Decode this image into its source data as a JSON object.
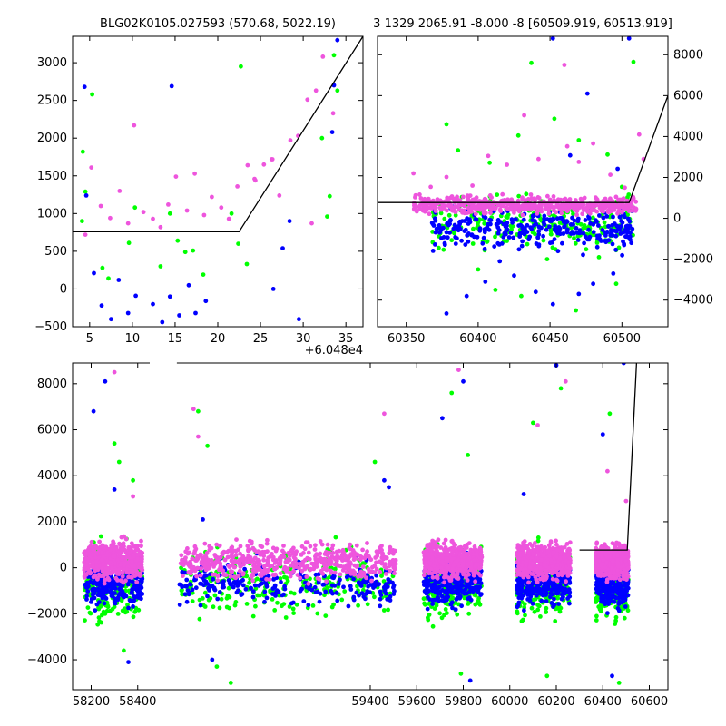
{
  "figure": {
    "title_left": "BLG02K0105.027593 (570.68, 5022.19)",
    "title_right": "3 1329 2065.91 -8.000 -8 [60509.919, 60513.919]"
  },
  "colors": {
    "green": "#00ff00",
    "blue": "#0000ff",
    "magenta": "#ee55dd",
    "line": "#000000"
  },
  "chart_data": [
    {
      "id": "zoom-left",
      "type": "scatter",
      "offset_label": "+6.048e4",
      "xlim": [
        3,
        37
      ],
      "ylim": [
        -500,
        3350
      ],
      "xticks": [
        5,
        10,
        15,
        20,
        25,
        30,
        35
      ],
      "xtick_labels": [
        "5",
        "10",
        "15",
        "20",
        "25",
        "30",
        "35"
      ],
      "yticks": [
        -500,
        0,
        500,
        1000,
        1500,
        2000,
        2500,
        3000
      ],
      "ytick_labels": [
        "−500",
        "0",
        "500",
        "1000",
        "1500",
        "2000",
        "2500",
        "3000"
      ],
      "model_line": [
        [
          3,
          760
        ],
        [
          22.5,
          760
        ],
        [
          37,
          3350
        ]
      ],
      "points": {
        "green": [
          [
            4.2,
            1820
          ],
          [
            4.5,
            1290
          ],
          [
            5.3,
            2580
          ],
          [
            4.1,
            900
          ],
          [
            6.5,
            280
          ],
          [
            7.2,
            140
          ],
          [
            9.6,
            610
          ],
          [
            10.3,
            1080
          ],
          [
            13.3,
            300
          ],
          [
            14.4,
            1000
          ],
          [
            15.3,
            640
          ],
          [
            16.2,
            490
          ],
          [
            17.1,
            510
          ],
          [
            18.3,
            190
          ],
          [
            21.6,
            1000
          ],
          [
            22.4,
            600
          ],
          [
            22.7,
            2950
          ],
          [
            23.4,
            330
          ],
          [
            32.2,
            2000
          ],
          [
            33.1,
            1230
          ],
          [
            33.6,
            3100
          ],
          [
            34.0,
            2630
          ],
          [
            32.8,
            960
          ]
        ],
        "blue": [
          [
            4.4,
            2680
          ],
          [
            4.6,
            1240
          ],
          [
            5.5,
            210
          ],
          [
            6.4,
            -220
          ],
          [
            7.5,
            -400
          ],
          [
            8.4,
            120
          ],
          [
            9.5,
            -320
          ],
          [
            10.4,
            -90
          ],
          [
            12.4,
            -200
          ],
          [
            13.5,
            -440
          ],
          [
            14.6,
            2690
          ],
          [
            14.4,
            -100
          ],
          [
            15.5,
            -350
          ],
          [
            16.6,
            50
          ],
          [
            17.4,
            -320
          ],
          [
            18.6,
            -160
          ],
          [
            26.5,
            0
          ],
          [
            27.6,
            540
          ],
          [
            28.4,
            900
          ],
          [
            29.5,
            -400
          ],
          [
            33.4,
            2080
          ],
          [
            33.6,
            2700
          ],
          [
            34.0,
            3300
          ]
        ],
        "magenta": [
          [
            4.5,
            720
          ],
          [
            5.2,
            1610
          ],
          [
            6.3,
            1100
          ],
          [
            7.4,
            940
          ],
          [
            8.5,
            1300
          ],
          [
            9.5,
            870
          ],
          [
            10.2,
            2170
          ],
          [
            11.3,
            1020
          ],
          [
            12.4,
            930
          ],
          [
            13.3,
            820
          ],
          [
            14.2,
            1120
          ],
          [
            15.1,
            1490
          ],
          [
            16.4,
            1040
          ],
          [
            17.3,
            1530
          ],
          [
            18.4,
            980
          ],
          [
            19.3,
            1220
          ],
          [
            20.4,
            1080
          ],
          [
            21.3,
            930
          ],
          [
            22.3,
            1360
          ],
          [
            23.5,
            1640
          ],
          [
            24.3,
            1460
          ],
          [
            25.4,
            1650
          ],
          [
            26.3,
            1720
          ],
          [
            27.2,
            1240
          ],
          [
            28.5,
            1970
          ],
          [
            29.4,
            2030
          ],
          [
            30.5,
            2510
          ],
          [
            31.5,
            2630
          ],
          [
            32.3,
            3080
          ],
          [
            33.5,
            2330
          ],
          [
            31.0,
            870
          ],
          [
            26.4,
            1720
          ],
          [
            24.4,
            1440
          ]
        ]
      }
    },
    {
      "id": "zoom-right",
      "type": "scatter",
      "xlim": [
        60330,
        60532
      ],
      "ylim": [
        -5300,
        8900
      ],
      "xticks": [
        60350,
        60400,
        60450,
        60500
      ],
      "xtick_labels": [
        "60350",
        "60400",
        "60450",
        "60500"
      ],
      "yticks": [
        -4000,
        -2000,
        0,
        2000,
        4000,
        6000,
        8000
      ],
      "ytick_labels": [
        "−4000",
        "−2000",
        "0",
        "2000",
        "4000",
        "6000",
        "8000"
      ],
      "model_line": [
        [
          60330,
          770
        ],
        [
          60505,
          770
        ],
        [
          60532,
          6000
        ]
      ],
      "points": {
        "green": [
          [
            60378,
            4600
          ],
          [
            60386,
            3320
          ],
          [
            60408,
            2720
          ],
          [
            60428,
            4050
          ],
          [
            60437,
            7600
          ],
          [
            60453,
            4870
          ],
          [
            60470,
            3820
          ],
          [
            60490,
            3120
          ],
          [
            60500,
            1540
          ],
          [
            60508,
            7650
          ],
          [
            60400,
            -2500
          ],
          [
            60412,
            -3500
          ],
          [
            60430,
            -3800
          ],
          [
            60448,
            -2000
          ],
          [
            60468,
            -4500
          ],
          [
            60484,
            -1900
          ],
          [
            60496,
            -3200
          ]
        ],
        "blue": [
          [
            60378,
            -4650
          ],
          [
            60392,
            -3800
          ],
          [
            60405,
            -3100
          ],
          [
            60415,
            -2100
          ],
          [
            60425,
            -2800
          ],
          [
            60440,
            -3600
          ],
          [
            60452,
            -4200
          ],
          [
            60470,
            -3700
          ],
          [
            60480,
            -3200
          ],
          [
            60494,
            -2700
          ],
          [
            60452,
            8800
          ],
          [
            60464,
            3080
          ],
          [
            60476,
            6100
          ],
          [
            60497,
            2420
          ],
          [
            60505,
            8800
          ]
        ],
        "magenta": [
          [
            60355,
            2200
          ],
          [
            60367,
            1540
          ],
          [
            60378,
            2020
          ],
          [
            60396,
            1600
          ],
          [
            60407,
            3050
          ],
          [
            60420,
            2620
          ],
          [
            60432,
            5040
          ],
          [
            60442,
            2900
          ],
          [
            60460,
            7500
          ],
          [
            60462,
            3520
          ],
          [
            60470,
            2760
          ],
          [
            60480,
            3660
          ],
          [
            60492,
            2130
          ],
          [
            60502,
            1500
          ],
          [
            60512,
            4100
          ],
          [
            60515,
            2900
          ]
        ]
      }
    },
    {
      "id": "full-season",
      "type": "scatter",
      "xlim": [
        58120,
        60680
      ],
      "ylim": [
        -5300,
        8900
      ],
      "xticks": [
        58200,
        58400,
        59400,
        59600,
        59800,
        60000,
        60200,
        60400,
        60600
      ],
      "xtick_labels": [
        "58200",
        "58400",
        "59400",
        "59600",
        "59800",
        "60000",
        "60200",
        "60400",
        "60600"
      ],
      "yticks": [
        -4000,
        -2000,
        0,
        2000,
        4000,
        6000,
        8000
      ],
      "ytick_labels": [
        "−4000",
        "−2000",
        "0",
        "2000",
        "4000",
        "6000",
        "8000"
      ],
      "axis_gap": [
        58440,
        58580
      ],
      "seasons": [
        [
          58170,
          58420
        ],
        [
          58580,
          59510
        ],
        [
          59630,
          59880
        ],
        [
          60030,
          60260
        ],
        [
          60370,
          60510
        ]
      ],
      "model_line": [
        [
          60300,
          770
        ],
        [
          60505,
          770
        ],
        [
          60545,
          8900
        ]
      ],
      "points": {
        "green": [
          [
            58300,
            5400
          ],
          [
            58320,
            4600
          ],
          [
            58340,
            -3600
          ],
          [
            58380,
            3800
          ],
          [
            58660,
            6800
          ],
          [
            58700,
            5300
          ],
          [
            58740,
            -4300
          ],
          [
            58800,
            -5000
          ],
          [
            59420,
            4600
          ],
          [
            59750,
            7600
          ],
          [
            59790,
            -4600
          ],
          [
            59820,
            4900
          ],
          [
            60100,
            6300
          ],
          [
            60160,
            -4700
          ],
          [
            60220,
            7800
          ],
          [
            60430,
            6700
          ],
          [
            60470,
            -5000
          ]
        ],
        "blue": [
          [
            58210,
            6800
          ],
          [
            58260,
            8100
          ],
          [
            58300,
            3400
          ],
          [
            58360,
            -4100
          ],
          [
            58680,
            2100
          ],
          [
            58720,
            -4000
          ],
          [
            59460,
            3800
          ],
          [
            59480,
            3500
          ],
          [
            59710,
            6500
          ],
          [
            59800,
            8100
          ],
          [
            59830,
            -4900
          ],
          [
            60060,
            3200
          ],
          [
            60200,
            8800
          ],
          [
            60400,
            5800
          ],
          [
            60440,
            -4700
          ],
          [
            60490,
            8900
          ]
        ],
        "magenta": [
          [
            58300,
            8500
          ],
          [
            58380,
            3100
          ],
          [
            58640,
            6900
          ],
          [
            58660,
            5700
          ],
          [
            59460,
            6700
          ],
          [
            59780,
            8600
          ],
          [
            60120,
            6200
          ],
          [
            60240,
            8100
          ],
          [
            60420,
            4200
          ],
          [
            60500,
            2900
          ]
        ]
      }
    }
  ]
}
